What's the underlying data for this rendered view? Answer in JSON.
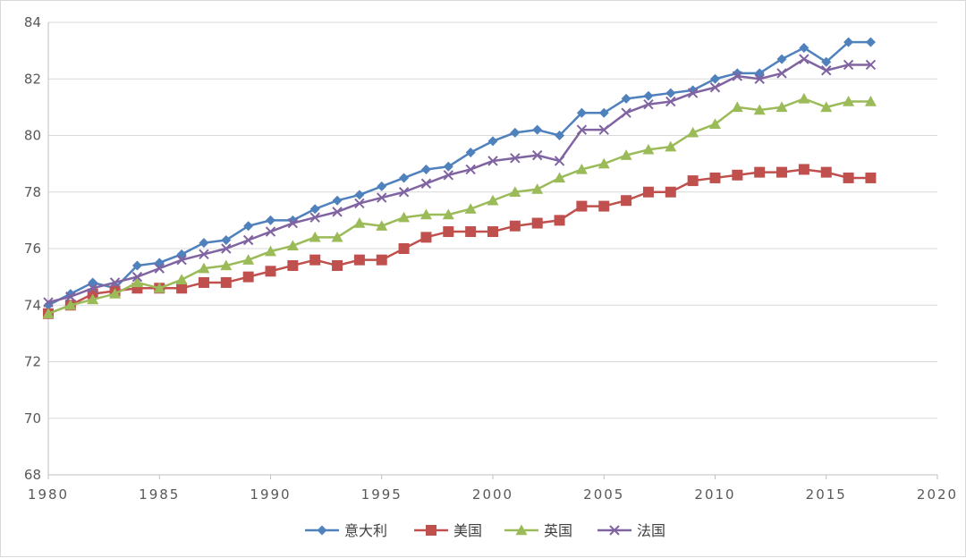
{
  "chart_data": {
    "type": "line",
    "title": "",
    "xlabel": "",
    "ylabel": "",
    "xlim": [
      1980,
      2020
    ],
    "ylim": [
      68,
      84
    ],
    "xticks": [
      1980,
      1985,
      1990,
      1995,
      2000,
      2005,
      2010,
      2015,
      2020
    ],
    "yticks": [
      68,
      70,
      72,
      74,
      76,
      78,
      80,
      82,
      84
    ],
    "grid": "horizontal",
    "legend_position": "bottom",
    "x": [
      1980,
      1981,
      1982,
      1983,
      1984,
      1985,
      1986,
      1987,
      1988,
      1989,
      1990,
      1991,
      1992,
      1993,
      1994,
      1995,
      1996,
      1997,
      1998,
      1999,
      2000,
      2001,
      2002,
      2003,
      2004,
      2005,
      2006,
      2007,
      2008,
      2009,
      2010,
      2011,
      2012,
      2013,
      2014,
      2015,
      2016,
      2017
    ],
    "series": [
      {
        "name": "意大利",
        "color": "#4f81bd",
        "marker": "diamond",
        "values": [
          74.0,
          74.4,
          74.8,
          74.6,
          75.4,
          75.5,
          75.8,
          76.2,
          76.3,
          76.8,
          77.0,
          77.0,
          77.4,
          77.7,
          77.9,
          78.2,
          78.5,
          78.8,
          78.9,
          79.4,
          79.8,
          80.1,
          80.2,
          80.0,
          80.8,
          80.8,
          81.3,
          81.4,
          81.5,
          81.6,
          82.0,
          82.2,
          82.2,
          82.7,
          83.1,
          82.6,
          83.3,
          83.3
        ]
      },
      {
        "name": "美国",
        "color": "#c0504d",
        "marker": "square",
        "values": [
          73.7,
          74.0,
          74.4,
          74.5,
          74.6,
          74.6,
          74.6,
          74.8,
          74.8,
          75.0,
          75.2,
          75.4,
          75.6,
          75.4,
          75.6,
          75.6,
          76.0,
          76.4,
          76.6,
          76.6,
          76.6,
          76.8,
          76.9,
          77.0,
          77.5,
          77.5,
          77.7,
          78.0,
          78.0,
          78.4,
          78.5,
          78.6,
          78.7,
          78.7,
          78.8,
          78.7,
          78.5,
          78.5
        ]
      },
      {
        "name": "英国",
        "color": "#9bbb59",
        "marker": "triangle",
        "values": [
          73.7,
          74.0,
          74.2,
          74.4,
          74.8,
          74.6,
          74.9,
          75.3,
          75.4,
          75.6,
          75.9,
          76.1,
          76.4,
          76.4,
          76.9,
          76.8,
          77.1,
          77.2,
          77.2,
          77.4,
          77.7,
          78.0,
          78.1,
          78.5,
          78.8,
          79.0,
          79.3,
          79.5,
          79.6,
          80.1,
          80.4,
          81.0,
          80.9,
          81.0,
          81.3,
          81.0,
          81.2,
          81.2
        ]
      },
      {
        "name": "法国",
        "color": "#8064a2",
        "marker": "x",
        "values": [
          74.1,
          74.3,
          74.6,
          74.8,
          75.0,
          75.3,
          75.6,
          75.8,
          76.0,
          76.3,
          76.6,
          76.9,
          77.1,
          77.3,
          77.6,
          77.8,
          78.0,
          78.3,
          78.6,
          78.8,
          79.1,
          79.2,
          79.3,
          79.1,
          80.2,
          80.2,
          80.8,
          81.1,
          81.2,
          81.5,
          81.7,
          82.1,
          82.0,
          82.2,
          82.7,
          82.3,
          82.5,
          82.5
        ]
      }
    ]
  }
}
